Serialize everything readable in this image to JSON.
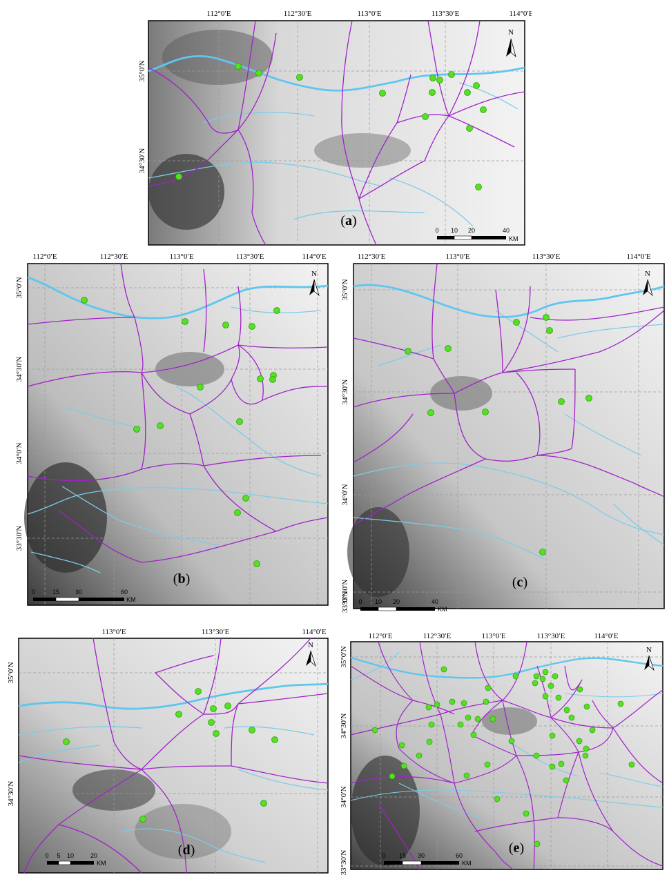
{
  "colors": {
    "river": "#7ecbe8",
    "river_main": "#5fc6ee",
    "road": "#a022c8",
    "point": "#55e022",
    "point_stroke": "#2f9e10",
    "frame": "#000000"
  },
  "panels": [
    {
      "id": "a",
      "label": "a",
      "top_ticks": [
        "112°0′E",
        "112°30′E",
        "113°0′E",
        "113°30′E",
        "114°0′E"
      ],
      "side_ticks": [
        "35°0′N",
        "34°30′N"
      ],
      "scale_ticks": [
        "0",
        "10",
        "20",
        "40"
      ],
      "scale_unit": "KM",
      "compass_label": "N"
    },
    {
      "id": "b",
      "label": "b",
      "top_ticks": [
        "112°0′E",
        "112°30′E",
        "113°0′E",
        "113°30′E",
        "114°0′E"
      ],
      "side_ticks": [
        "35°0′N",
        "34°30′N",
        "34°0′N",
        "33°30′N"
      ],
      "scale_ticks": [
        "0",
        "15",
        "30",
        "60"
      ],
      "scale_unit": "KM",
      "compass_label": "N"
    },
    {
      "id": "c",
      "label": "c",
      "top_ticks": [
        "112°30′E",
        "113°0′E",
        "113°30′E",
        "114°0′E"
      ],
      "side_ticks": [
        "35°0′N",
        "34°30′N",
        "34°0′N",
        "33°30′N",
        "33°0′N"
      ],
      "scale_ticks": [
        "0",
        "10",
        "20",
        "40"
      ],
      "scale_unit": "KM",
      "compass_label": "N"
    },
    {
      "id": "d",
      "label": "d",
      "top_ticks": [
        "113°0′E",
        "113°30′E",
        "114°0′E"
      ],
      "side_ticks": [
        "35°0′N",
        "34°30′N"
      ],
      "scale_ticks": [
        "0",
        "5",
        "10",
        "20"
      ],
      "scale_unit": "KM",
      "compass_label": "N"
    },
    {
      "id": "e",
      "label": "e",
      "top_ticks": [
        "112°0′E",
        "112°30′E",
        "113°0′E",
        "113°30′E",
        "114°0′E"
      ],
      "side_ticks": [
        "35°0′N",
        "34°30′N",
        "34°0′N",
        "33°30′N"
      ],
      "scale_ticks": [
        "0",
        "15",
        "30",
        "60"
      ],
      "scale_unit": "KM",
      "compass_label": "N"
    }
  ]
}
